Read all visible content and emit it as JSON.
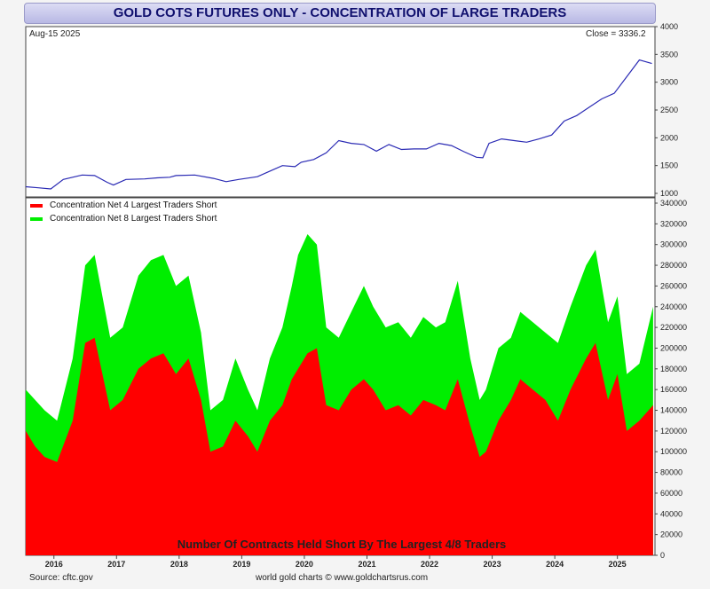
{
  "title": "GOLD COTS FUTURES ONLY - CONCENTRATION OF LARGE TRADERS",
  "date_label": "Aug-15  2025",
  "close_label": "Close = 3336.2",
  "bottom_caption": "Number Of Contracts Held Short By The Largest 4/8 Traders",
  "source": "Source: cftc.gov",
  "credit": "world gold charts © www.goldchartsrus.com",
  "colors": {
    "price": "#2a2ab4",
    "net4": "#ff0000",
    "net8": "#00ee00",
    "banner_text": "#10106e"
  },
  "chart_data": [
    {
      "type": "line",
      "series": [
        {
          "name": "",
          "color": "#2a2ab4",
          "x": [
            2015.6,
            2015.8,
            2016.0,
            2016.2,
            2016.5,
            2016.7,
            2016.9,
            2017.0,
            2017.2,
            2017.5,
            2017.7,
            2017.9,
            2018.0,
            2018.3,
            2018.6,
            2018.8,
            2019.0,
            2019.3,
            2019.5,
            2019.7,
            2019.9,
            2020.0,
            2020.2,
            2020.4,
            2020.6,
            2020.8,
            2021.0,
            2021.2,
            2021.4,
            2021.6,
            2021.8,
            2022.0,
            2022.2,
            2022.4,
            2022.6,
            2022.8,
            2022.9,
            2023.0,
            2023.2,
            2023.4,
            2023.6,
            2023.8,
            2024.0,
            2024.2,
            2024.4,
            2024.6,
            2024.8,
            2025.0,
            2025.2,
            2025.4,
            2025.6
          ],
          "values": [
            1120,
            1100,
            1080,
            1250,
            1330,
            1320,
            1200,
            1150,
            1250,
            1260,
            1280,
            1290,
            1320,
            1330,
            1270,
            1210,
            1250,
            1300,
            1400,
            1500,
            1480,
            1560,
            1610,
            1730,
            1950,
            1900,
            1880,
            1760,
            1880,
            1790,
            1800,
            1800,
            1900,
            1860,
            1750,
            1650,
            1640,
            1900,
            1980,
            1950,
            1920,
            1980,
            2050,
            2300,
            2400,
            2550,
            2700,
            2800,
            3100,
            3400,
            3336
          ]
        }
      ],
      "ylim": [
        1000,
        4000
      ],
      "yticks": [
        1000,
        1500,
        2000,
        2500,
        3000,
        3500,
        4000
      ]
    },
    {
      "type": "area",
      "x": [
        2015.6,
        2015.75,
        2015.9,
        2016.1,
        2016.35,
        2016.55,
        2016.7,
        2016.95,
        2017.15,
        2017.4,
        2017.6,
        2017.8,
        2018.0,
        2018.2,
        2018.4,
        2018.55,
        2018.75,
        2018.95,
        2019.15,
        2019.3,
        2019.5,
        2019.7,
        2019.85,
        2019.95,
        2020.1,
        2020.25,
        2020.4,
        2020.6,
        2020.8,
        2021.0,
        2021.15,
        2021.35,
        2021.55,
        2021.75,
        2021.95,
        2022.15,
        2022.3,
        2022.5,
        2022.7,
        2022.85,
        2022.95,
        2023.15,
        2023.35,
        2023.5,
        2023.7,
        2023.9,
        2024.1,
        2024.3,
        2024.55,
        2024.7,
        2024.9,
        2025.05,
        2025.2,
        2025.4,
        2025.62
      ],
      "series": [
        {
          "name": "Concentration Net 4 Largest Traders Short",
          "color": "#ff0000",
          "values": [
            120000,
            105000,
            95000,
            90000,
            130000,
            205000,
            210000,
            140000,
            150000,
            180000,
            190000,
            195000,
            175000,
            190000,
            150000,
            100000,
            105000,
            130000,
            115000,
            100000,
            130000,
            145000,
            170000,
            180000,
            195000,
            200000,
            145000,
            140000,
            160000,
            170000,
            160000,
            140000,
            145000,
            135000,
            150000,
            145000,
            140000,
            170000,
            125000,
            95000,
            100000,
            130000,
            150000,
            170000,
            160000,
            150000,
            130000,
            160000,
            190000,
            205000,
            150000,
            175000,
            120000,
            130000,
            145000
          ]
        },
        {
          "name": "Concentration Net 8 Largest Traders Short",
          "color": "#00ee00",
          "values": [
            160000,
            150000,
            140000,
            130000,
            190000,
            280000,
            290000,
            210000,
            220000,
            270000,
            285000,
            290000,
            260000,
            270000,
            215000,
            140000,
            150000,
            190000,
            160000,
            140000,
            190000,
            220000,
            260000,
            290000,
            310000,
            300000,
            220000,
            210000,
            235000,
            260000,
            240000,
            220000,
            225000,
            210000,
            230000,
            220000,
            225000,
            265000,
            190000,
            150000,
            160000,
            200000,
            210000,
            235000,
            225000,
            215000,
            205000,
            240000,
            280000,
            295000,
            225000,
            250000,
            175000,
            185000,
            240000
          ]
        }
      ],
      "ylim": [
        0,
        340000
      ],
      "yticks": [
        0,
        20000,
        40000,
        60000,
        80000,
        100000,
        120000,
        140000,
        160000,
        180000,
        200000,
        220000,
        240000,
        260000,
        280000,
        300000,
        320000,
        340000
      ],
      "xticks": [
        "2016",
        "2017",
        "2018",
        "2019",
        "2020",
        "2021",
        "2022",
        "2023",
        "2024",
        "2025"
      ]
    }
  ]
}
